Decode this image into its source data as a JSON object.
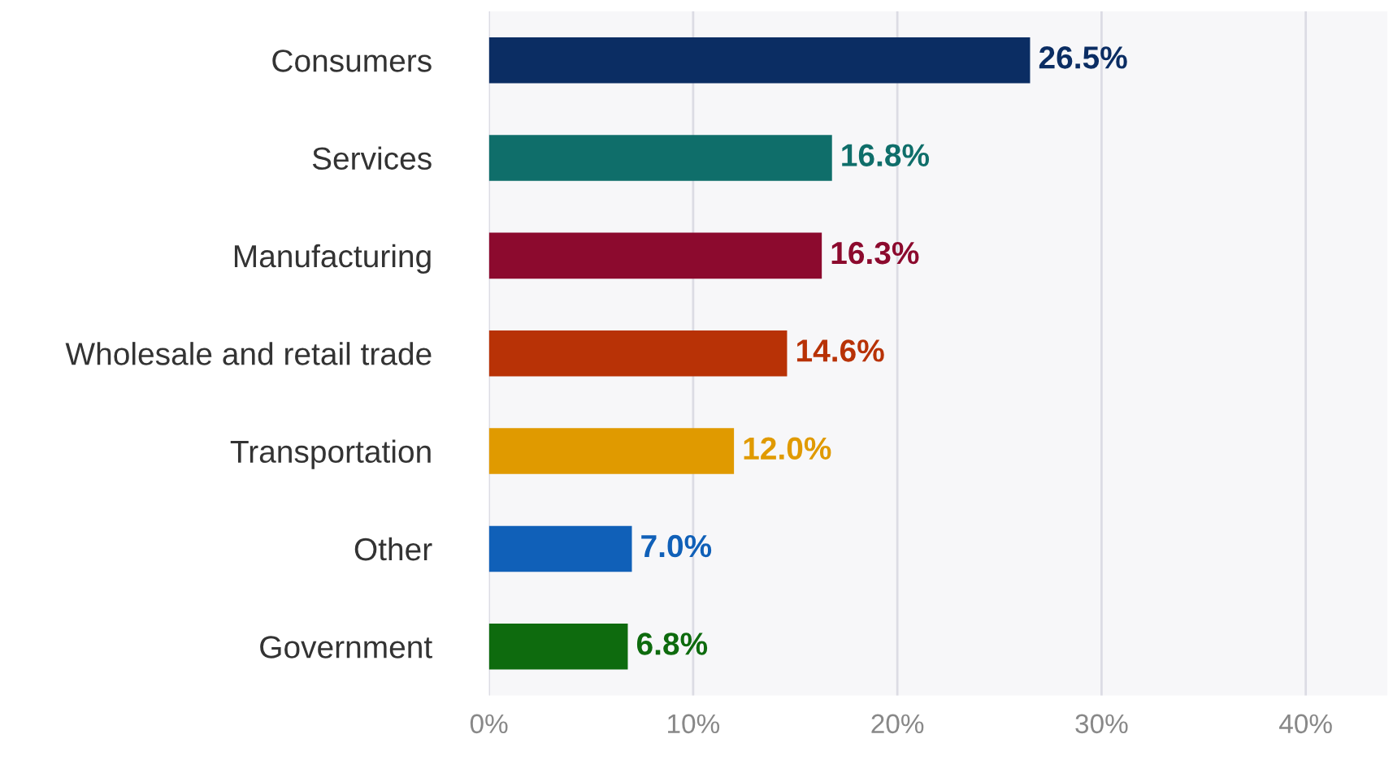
{
  "chart_data": {
    "type": "bar",
    "orientation": "horizontal",
    "categories": [
      "Consumers",
      "Services",
      "Manufacturing",
      "Wholesale and retail trade",
      "Transportation",
      "Other",
      "Government"
    ],
    "values": [
      26.5,
      16.8,
      16.3,
      14.6,
      12.0,
      7.0,
      6.8
    ],
    "colors": [
      "#0b2d63",
      "#0f6e6a",
      "#8c0a2e",
      "#b83206",
      "#e09a00",
      "#1060b8",
      "#0e6b0e"
    ],
    "value_labels": [
      "26.5%",
      "16.8%",
      "16.3%",
      "14.6%",
      "12.0%",
      "7.0%",
      "6.8%"
    ],
    "xlim": [
      0,
      44
    ],
    "xticks": [
      {
        "value": 0,
        "label": "0%"
      },
      {
        "value": 10,
        "label": "10%"
      },
      {
        "value": 20,
        "label": "20%"
      },
      {
        "value": 30,
        "label": "30%"
      },
      {
        "value": 40,
        "label": "40%"
      }
    ],
    "grid": "x",
    "legend": false
  }
}
